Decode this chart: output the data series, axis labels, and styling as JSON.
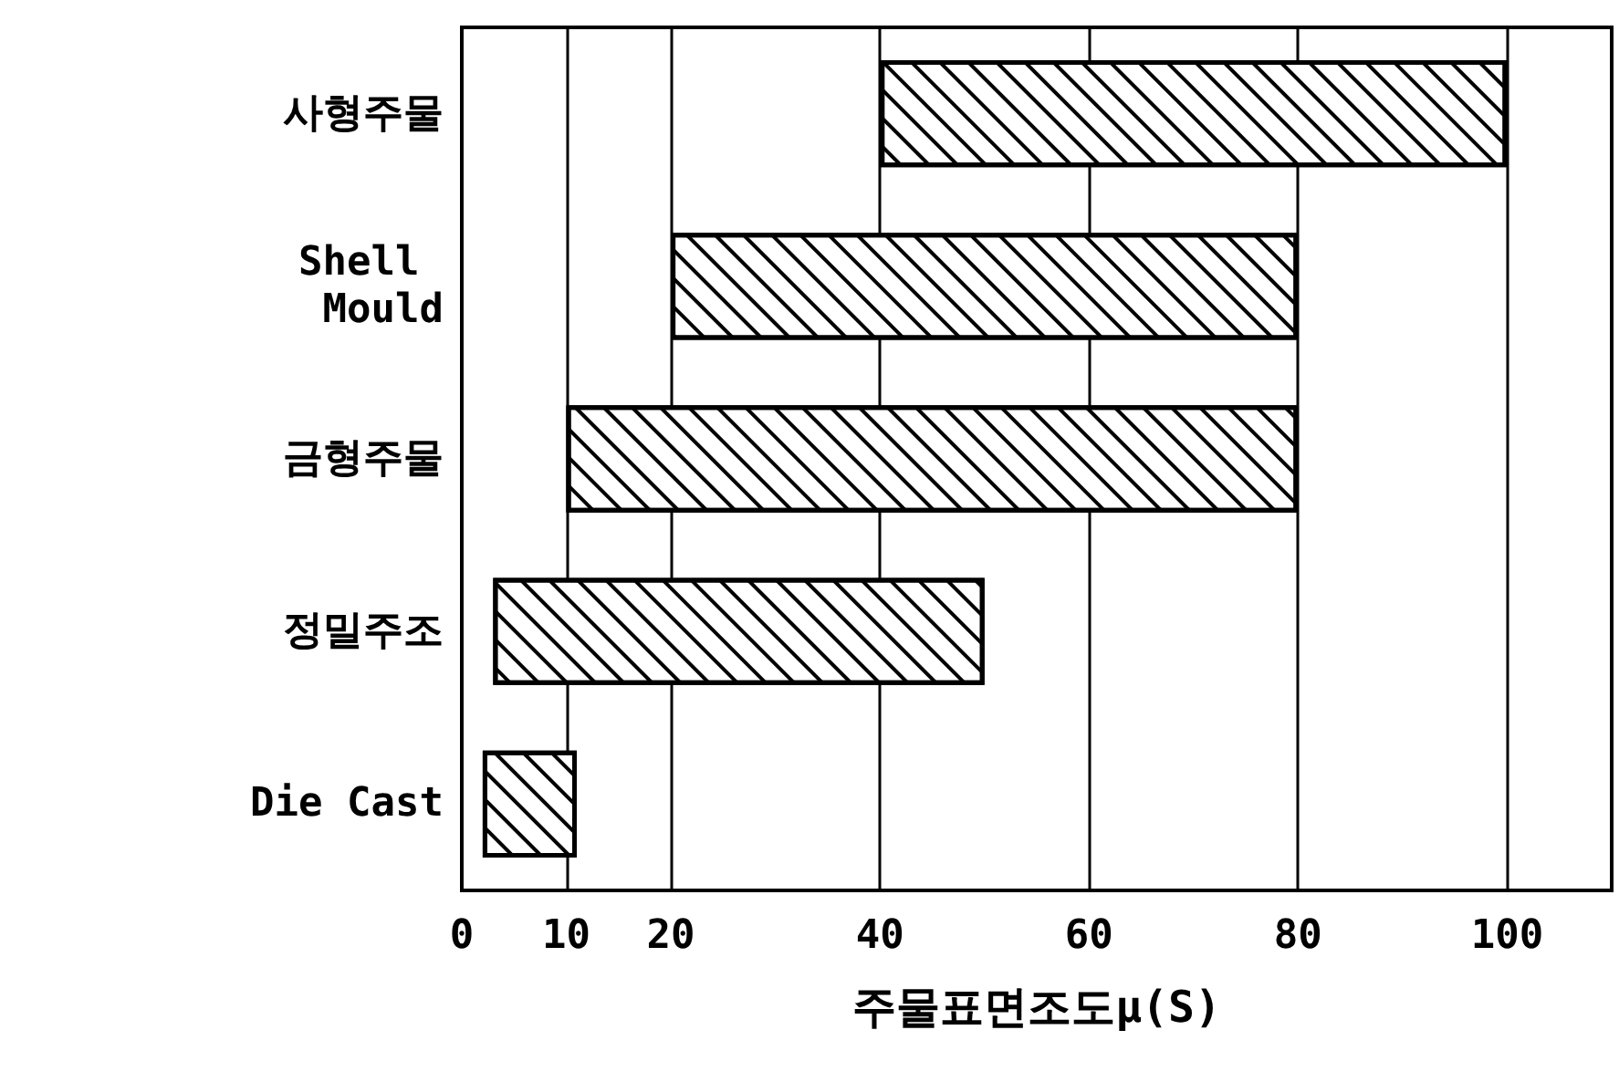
{
  "chart_data": {
    "type": "bar",
    "orientation": "horizontal",
    "xlabel": "주물표면조도μ(S)",
    "categories": [
      "사형주물",
      "Shell Mould",
      "금형주물",
      "정밀주조",
      "Die Cast"
    ],
    "base": [
      40,
      20,
      10,
      3,
      2
    ],
    "values": [
      60,
      60,
      70,
      47,
      9
    ],
    "color": "#000000",
    "xlim": [
      0,
      110
    ],
    "xticks": [
      0,
      10,
      20,
      40,
      60,
      80,
      100
    ],
    "grid": "x"
  }
}
